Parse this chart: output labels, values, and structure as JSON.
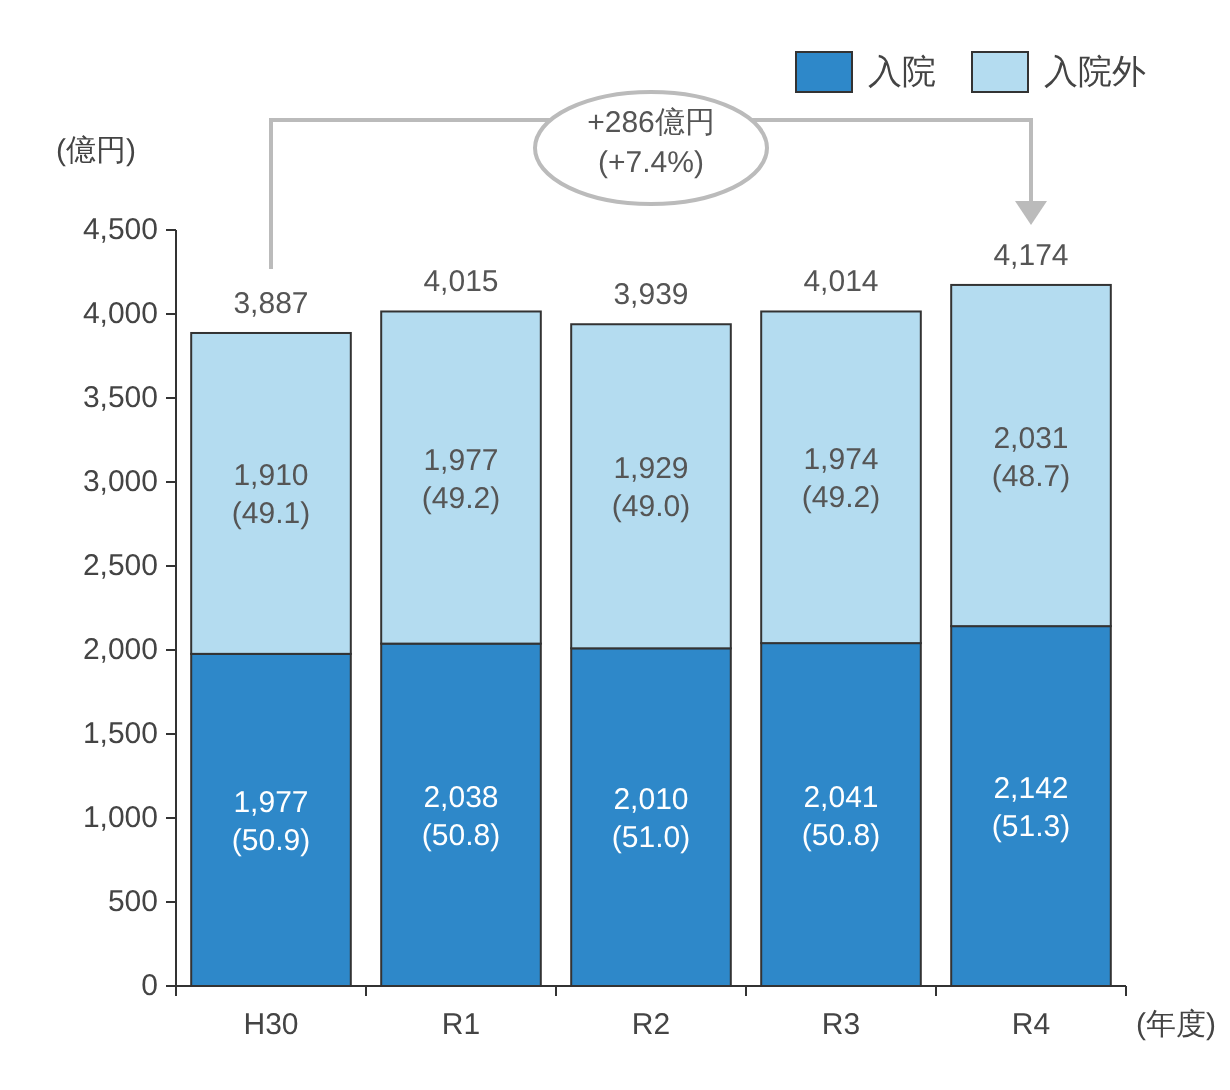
{
  "chart_data": {
    "type": "bar",
    "stacked": true,
    "ylabel": "(億円)",
    "xlabel": "(年度)",
    "categories": [
      "H30",
      "R1",
      "R2",
      "R3",
      "R4"
    ],
    "series": [
      {
        "name": "入院",
        "color": "#2e88c9",
        "values": [
          1977,
          2038,
          2010,
          2041,
          2142
        ],
        "value_labels": [
          "1,977\n(50.9)",
          "2,038\n(50.8)",
          "2,010\n(51.0)",
          "2,041\n(50.8)",
          "2,142\n(51.3)"
        ]
      },
      {
        "name": "入院外",
        "color": "#b4dcf0",
        "values": [
          1910,
          1977,
          1929,
          1974,
          2031
        ],
        "value_labels": [
          "1,910\n(49.1)",
          "1,977\n(49.2)",
          "1,929\n(49.0)",
          "1,974\n(49.2)",
          "2,031\n(48.7)"
        ]
      }
    ],
    "totals": [
      "3,887",
      "4,015",
      "3,939",
      "4,014",
      "4,174"
    ],
    "ylim": [
      0,
      4500
    ],
    "yticks": [
      0,
      500,
      {
        "value": 1000,
        "label": "1,000"
      },
      {
        "value": 1500,
        "label": "1,500"
      },
      {
        "value": 2000,
        "label": "2,000"
      },
      {
        "value": 2500,
        "label": "2,500"
      },
      {
        "value": 3000,
        "label": "3,000"
      },
      {
        "value": 3500,
        "label": "3,500"
      },
      {
        "value": 4000,
        "label": "4,000"
      },
      {
        "value": 4500,
        "label": "4,500"
      }
    ],
    "annotations": [
      "+286億円\n(+7.4%)"
    ],
    "legend": "top right"
  }
}
